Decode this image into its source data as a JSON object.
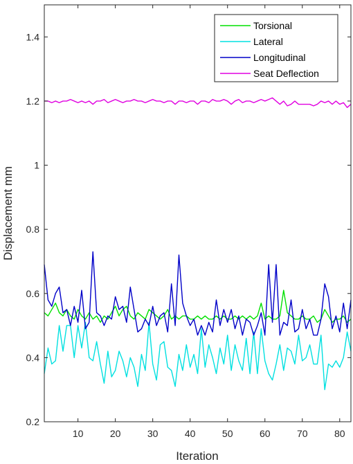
{
  "chart_data": {
    "type": "line",
    "title": "",
    "xlabel": "Iteration",
    "ylabel": "Displacement mm",
    "xlim": [
      1,
      83
    ],
    "ylim": [
      0.2,
      1.5
    ],
    "xticks": [
      10,
      20,
      30,
      40,
      50,
      60,
      70,
      80
    ],
    "yticks": [
      0.2,
      0.4,
      0.6,
      0.8,
      1,
      1.2,
      1.4
    ],
    "grid": false,
    "legend_position": "top-right",
    "series": [
      {
        "name": "Torsional",
        "color": "#00e000",
        "values": [
          0.54,
          0.53,
          0.55,
          0.57,
          0.54,
          0.53,
          0.55,
          0.53,
          0.52,
          0.55,
          0.53,
          0.52,
          0.54,
          0.52,
          0.53,
          0.51,
          0.53,
          0.52,
          0.54,
          0.56,
          0.53,
          0.55,
          0.56,
          0.53,
          0.52,
          0.54,
          0.53,
          0.52,
          0.55,
          0.54,
          0.53,
          0.52,
          0.53,
          0.55,
          0.52,
          0.53,
          0.52,
          0.53,
          0.53,
          0.52,
          0.52,
          0.53,
          0.52,
          0.53,
          0.52,
          0.52,
          0.53,
          0.52,
          0.53,
          0.52,
          0.52,
          0.53,
          0.52,
          0.53,
          0.52,
          0.53,
          0.52,
          0.53,
          0.57,
          0.52,
          0.53,
          0.52,
          0.52,
          0.53,
          0.61,
          0.54,
          0.53,
          0.52,
          0.52,
          0.53,
          0.52,
          0.52,
          0.53,
          0.51,
          0.52,
          0.55,
          0.53,
          0.51,
          0.52,
          0.52,
          0.53,
          0.51,
          0.52
        ]
      },
      {
        "name": "Lateral",
        "color": "#00e0e0",
        "values": [
          0.35,
          0.43,
          0.38,
          0.39,
          0.5,
          0.42,
          0.5,
          0.5,
          0.4,
          0.5,
          0.43,
          0.51,
          0.4,
          0.39,
          0.45,
          0.38,
          0.32,
          0.42,
          0.34,
          0.36,
          0.42,
          0.39,
          0.34,
          0.4,
          0.37,
          0.31,
          0.41,
          0.36,
          0.51,
          0.38,
          0.33,
          0.44,
          0.45,
          0.37,
          0.36,
          0.31,
          0.41,
          0.36,
          0.44,
          0.37,
          0.41,
          0.35,
          0.49,
          0.37,
          0.44,
          0.4,
          0.35,
          0.43,
          0.38,
          0.47,
          0.36,
          0.44,
          0.39,
          0.36,
          0.46,
          0.35,
          0.48,
          0.35,
          0.49,
          0.39,
          0.35,
          0.33,
          0.38,
          0.44,
          0.36,
          0.43,
          0.42,
          0.38,
          0.47,
          0.39,
          0.4,
          0.44,
          0.38,
          0.38,
          0.47,
          0.3,
          0.38,
          0.37,
          0.39,
          0.37,
          0.4,
          0.48,
          0.42
        ]
      },
      {
        "name": "Longitudinal",
        "color": "#0000c8",
        "values": [
          0.69,
          0.58,
          0.56,
          0.6,
          0.62,
          0.54,
          0.55,
          0.5,
          0.56,
          0.51,
          0.61,
          0.49,
          0.51,
          0.73,
          0.54,
          0.53,
          0.5,
          0.53,
          0.52,
          0.59,
          0.55,
          0.56,
          0.51,
          0.62,
          0.55,
          0.48,
          0.49,
          0.52,
          0.5,
          0.56,
          0.5,
          0.53,
          0.54,
          0.48,
          0.63,
          0.5,
          0.72,
          0.57,
          0.53,
          0.5,
          0.52,
          0.47,
          0.5,
          0.47,
          0.51,
          0.48,
          0.58,
          0.5,
          0.55,
          0.51,
          0.55,
          0.49,
          0.53,
          0.47,
          0.52,
          0.51,
          0.47,
          0.5,
          0.54,
          0.47,
          0.69,
          0.51,
          0.69,
          0.47,
          0.51,
          0.5,
          0.58,
          0.48,
          0.49,
          0.55,
          0.49,
          0.52,
          0.47,
          0.47,
          0.52,
          0.63,
          0.59,
          0.49,
          0.53,
          0.48,
          0.57,
          0.49,
          0.58
        ]
      },
      {
        "name": "Seat Deflection",
        "color": "#e000e0",
        "values": [
          1.2,
          1.2,
          1.195,
          1.2,
          1.195,
          1.2,
          1.2,
          1.205,
          1.2,
          1.195,
          1.2,
          1.195,
          1.2,
          1.19,
          1.2,
          1.2,
          1.205,
          1.195,
          1.2,
          1.205,
          1.2,
          1.195,
          1.2,
          1.2,
          1.205,
          1.2,
          1.2,
          1.195,
          1.2,
          1.205,
          1.2,
          1.2,
          1.195,
          1.2,
          1.2,
          1.19,
          1.2,
          1.2,
          1.195,
          1.2,
          1.2,
          1.19,
          1.2,
          1.2,
          1.195,
          1.205,
          1.2,
          1.2,
          1.205,
          1.2,
          1.19,
          1.2,
          1.205,
          1.195,
          1.2,
          1.2,
          1.195,
          1.2,
          1.205,
          1.2,
          1.205,
          1.21,
          1.2,
          1.19,
          1.2,
          1.185,
          1.19,
          1.2,
          1.19,
          1.19,
          1.19,
          1.19,
          1.185,
          1.19,
          1.2,
          1.195,
          1.2,
          1.19,
          1.2,
          1.19,
          1.195,
          1.18,
          1.19
        ]
      }
    ]
  }
}
